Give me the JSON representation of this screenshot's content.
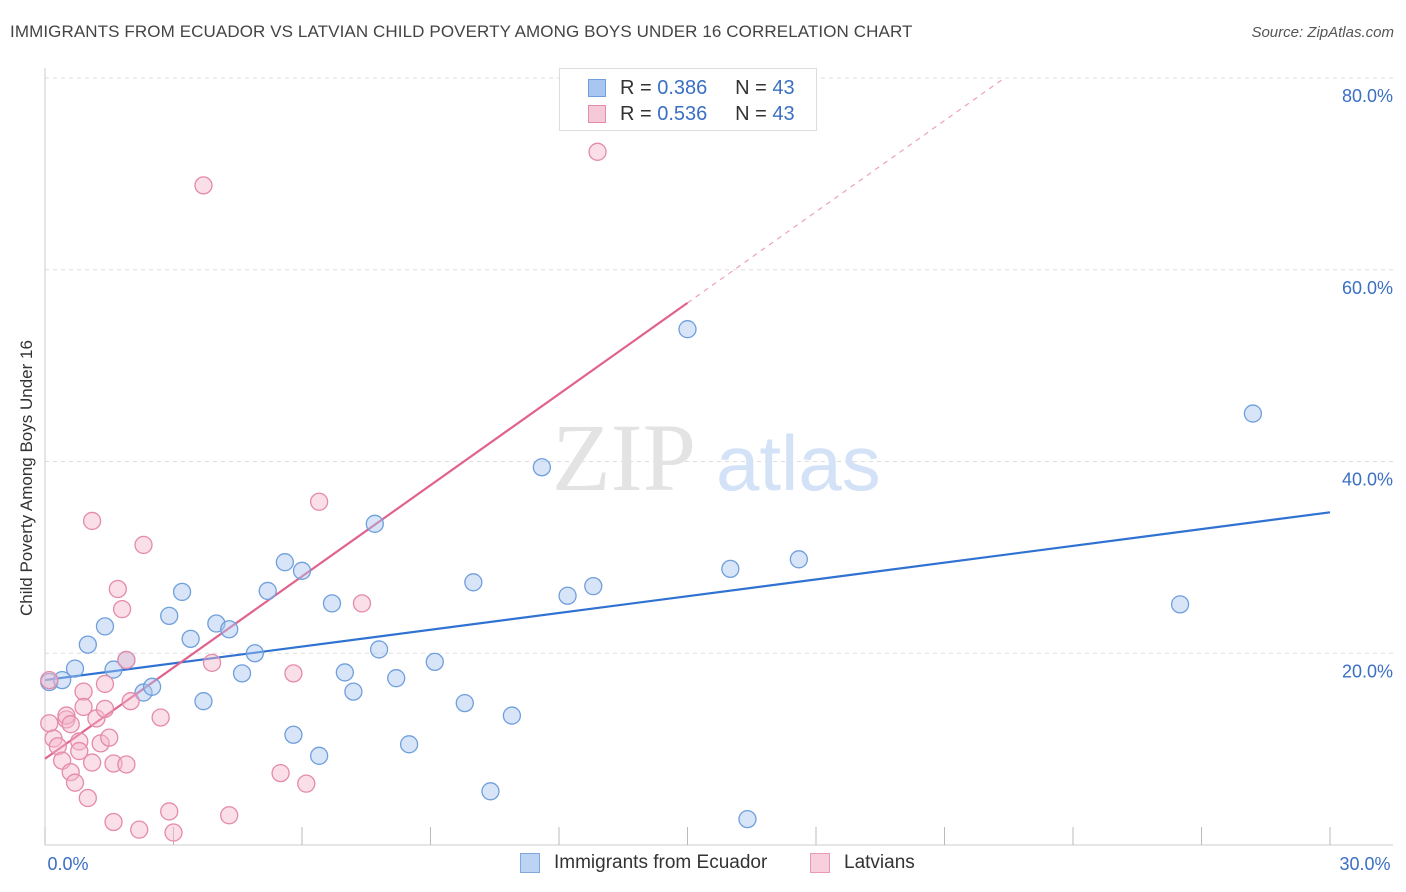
{
  "title": "IMMIGRANTS FROM ECUADOR VS LATVIAN CHILD POVERTY AMONG BOYS UNDER 16 CORRELATION CHART",
  "source": "Source: ZipAtlas.com",
  "watermark": {
    "zip": "ZIP",
    "atlas": "atlas"
  },
  "colors": {
    "blue_fill": "#a8c6f0",
    "blue_stroke": "#6f9fdc",
    "blue_line": "#2f72d2",
    "pink_fill": "#f5b9cc",
    "pink_stroke": "#e58aa8",
    "pink_line": "#e0628e",
    "tick_text": "#3a6fc4",
    "grid": "#dddddd"
  },
  "legend_top": [
    {
      "r_label": "R =",
      "r_value": "0.386",
      "n_label": "N =",
      "n_value": "43"
    },
    {
      "r_label": "R =",
      "r_value": "0.536",
      "n_label": "N =",
      "n_value": "43"
    }
  ],
  "legend_bottom": [
    "Immigrants from Ecuador",
    "Latvians"
  ],
  "chart_data": {
    "type": "scatter",
    "title": "IMMIGRANTS FROM ECUADOR VS LATVIAN CHILD POVERTY AMONG BOYS UNDER 16 CORRELATION CHART",
    "xlabel": "",
    "ylabel": "Child Poverty Among Boys Under 16",
    "xlim": [
      0,
      30
    ],
    "ylim": [
      0,
      80
    ],
    "x_tick_labels": [
      "0.0%",
      "30.0%"
    ],
    "y_tick_labels": [
      "20.0%",
      "40.0%",
      "60.0%",
      "80.0%"
    ],
    "y_ticks": [
      20,
      40,
      60,
      80
    ],
    "grid": true,
    "legend_position": "top-center",
    "series": [
      {
        "name": "Immigrants from Ecuador",
        "color": "blue",
        "r": 0.386,
        "n": 43,
        "trend": {
          "x0": 0,
          "y0": 17.2,
          "x1": 30,
          "y1": 34.7,
          "solid_to": 30
        },
        "points": [
          [
            0.1,
            17.0
          ],
          [
            0.4,
            17.2
          ],
          [
            0.7,
            18.4
          ],
          [
            1.0,
            20.9
          ],
          [
            1.4,
            22.8
          ],
          [
            1.6,
            18.3
          ],
          [
            1.9,
            19.3
          ],
          [
            2.3,
            15.9
          ],
          [
            2.5,
            16.5
          ],
          [
            2.9,
            23.9
          ],
          [
            3.2,
            26.4
          ],
          [
            3.4,
            21.5
          ],
          [
            3.7,
            15.0
          ],
          [
            4.0,
            23.1
          ],
          [
            4.3,
            22.5
          ],
          [
            4.6,
            17.9
          ],
          [
            4.9,
            20.0
          ],
          [
            5.2,
            26.5
          ],
          [
            5.6,
            29.5
          ],
          [
            5.8,
            11.5
          ],
          [
            6.0,
            28.6
          ],
          [
            6.4,
            9.3
          ],
          [
            6.7,
            25.2
          ],
          [
            7.0,
            18.0
          ],
          [
            7.2,
            16.0
          ],
          [
            7.7,
            33.5
          ],
          [
            7.8,
            20.4
          ],
          [
            8.2,
            17.4
          ],
          [
            8.5,
            10.5
          ],
          [
            9.1,
            19.1
          ],
          [
            9.8,
            14.8
          ],
          [
            10.0,
            27.4
          ],
          [
            10.4,
            5.6
          ],
          [
            10.9,
            13.5
          ],
          [
            11.6,
            39.4
          ],
          [
            12.2,
            26.0
          ],
          [
            12.8,
            27.0
          ],
          [
            15.0,
            53.8
          ],
          [
            16.0,
            28.8
          ],
          [
            16.4,
            2.7
          ],
          [
            17.6,
            29.8
          ],
          [
            26.5,
            25.1
          ],
          [
            28.2,
            45.0
          ]
        ]
      },
      {
        "name": "Latvians",
        "color": "pink",
        "r": 0.536,
        "n": 43,
        "trend": {
          "x0": 0,
          "y0": 9.0,
          "x1": 22.4,
          "y1": 80.0,
          "solid_to": 15.0
        },
        "points": [
          [
            0.1,
            17.2
          ],
          [
            0.1,
            12.7
          ],
          [
            0.2,
            11.1
          ],
          [
            0.3,
            10.3
          ],
          [
            0.4,
            8.8
          ],
          [
            0.5,
            13.1
          ],
          [
            0.5,
            13.5
          ],
          [
            0.6,
            7.6
          ],
          [
            0.6,
            12.6
          ],
          [
            0.7,
            6.5
          ],
          [
            0.8,
            10.8
          ],
          [
            0.9,
            16.0
          ],
          [
            0.9,
            14.4
          ],
          [
            1.0,
            4.9
          ],
          [
            1.1,
            8.6
          ],
          [
            1.1,
            33.8
          ],
          [
            1.2,
            13.2
          ],
          [
            1.3,
            10.6
          ],
          [
            1.4,
            14.2
          ],
          [
            1.4,
            16.8
          ],
          [
            1.5,
            11.2
          ],
          [
            1.6,
            8.5
          ],
          [
            1.6,
            2.4
          ],
          [
            1.7,
            26.7
          ],
          [
            1.8,
            24.6
          ],
          [
            1.9,
            19.3
          ],
          [
            1.9,
            8.4
          ],
          [
            2.0,
            15.0
          ],
          [
            2.2,
            1.6
          ],
          [
            2.3,
            31.3
          ],
          [
            2.7,
            13.3
          ],
          [
            2.9,
            3.5
          ],
          [
            3.0,
            1.3
          ],
          [
            3.7,
            68.8
          ],
          [
            3.9,
            19.0
          ],
          [
            4.3,
            3.1
          ],
          [
            5.5,
            7.5
          ],
          [
            5.8,
            17.9
          ],
          [
            6.1,
            6.4
          ],
          [
            6.4,
            35.8
          ],
          [
            7.4,
            25.2
          ],
          [
            12.9,
            72.3
          ],
          [
            0.8,
            9.8
          ]
        ]
      }
    ]
  }
}
